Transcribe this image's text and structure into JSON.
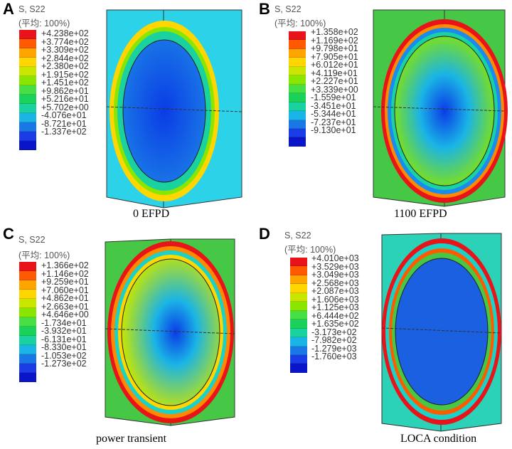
{
  "colors": [
    "#e8141a",
    "#ff5a00",
    "#ffa500",
    "#ffd600",
    "#c8e600",
    "#8ae600",
    "#46e046",
    "#1ad25a",
    "#1ad2a0",
    "#1ab4e6",
    "#1a78e6",
    "#1a3ce6",
    "#0a14c8"
  ],
  "panels": [
    {
      "letter": "A",
      "header1": "S, S22",
      "header2": "(平均: 100%)",
      "values": [
        "+4.238e+02",
        "+3.774e+02",
        "+3.309e+02",
        "+2.844e+02",
        "+2.380e+02",
        "+1.915e+02",
        "+1.451e+02",
        "+9.862e+01",
        "+5.216e+01",
        "+5.702e+00",
        "-4.076e+01",
        "-8.721e+01",
        "-1.337e+02"
      ],
      "caption": "0 EFPD"
    },
    {
      "letter": "B",
      "header1": "S, S22",
      "header2": "(平均: 100%)",
      "values": [
        "+1.358e+02",
        "+1.169e+02",
        "+9.798e+01",
        "+7.905e+01",
        "+6.012e+01",
        "+4.119e+01",
        "+2.227e+01",
        "+3.339e+00",
        "-1.559e+01",
        "-3.451e+01",
        "-5.344e+01",
        "-7.237e+01",
        "-9.130e+01"
      ],
      "caption": "1100 EFPD"
    },
    {
      "letter": "C",
      "header1": "S, S22",
      "header2": "(平均: 100%)",
      "values": [
        "+1.366e+02",
        "+1.146e+02",
        "+9.259e+01",
        "+7.060e+01",
        "+4.862e+01",
        "+2.663e+01",
        "+4.646e+00",
        "-1.734e+01",
        "-3.932e+01",
        "-6.131e+01",
        "-8.330e+01",
        "-1.053e+02",
        "-1.273e+02"
      ],
      "caption": "power transient"
    },
    {
      "letter": "D",
      "header1": "S, S22",
      "header2": "(平均: 100%)",
      "values": [
        "+4.010e+03",
        "+3.529e+03",
        "+3.049e+03",
        "+2.568e+03",
        "+2.087e+03",
        "+1.606e+03",
        "+1.125e+03",
        "+6.444e+02",
        "+1.635e+02",
        "-3.173e+02",
        "-7.982e+02",
        "-1.279e+03",
        "-1.760e+03"
      ],
      "caption": "LOCA condition"
    }
  ]
}
